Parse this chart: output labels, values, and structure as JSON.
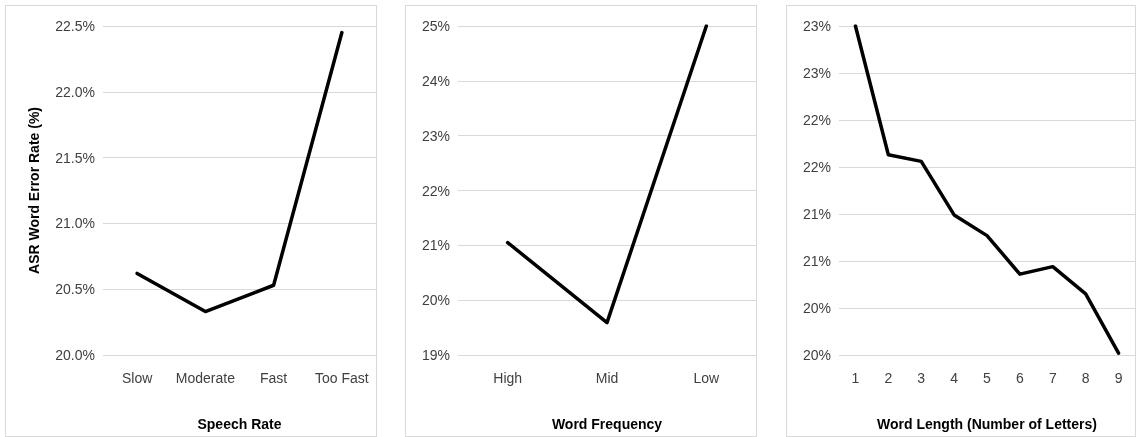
{
  "chart_data": [
    {
      "type": "line",
      "xlabel": "Speech Rate",
      "ylabel": "ASR Word Error Rate (%)",
      "categories": [
        "Slow",
        "Moderate",
        "Fast",
        "Too Fast"
      ],
      "series": [
        {
          "color": "#000000",
          "values": [
            20.62,
            20.33,
            20.53,
            22.45
          ]
        }
      ],
      "ylim": [
        20,
        22.5
      ],
      "yticks": [
        {
          "value": 20,
          "label": "20.0%"
        },
        {
          "value": 20.5,
          "label": "20.5%"
        },
        {
          "value": 21,
          "label": "21.0%"
        },
        {
          "value": 21.5,
          "label": "21.5%"
        },
        {
          "value": 22,
          "label": "22.0%"
        },
        {
          "value": 22.5,
          "label": "22.5%"
        }
      ],
      "grid": "y",
      "marker": "none",
      "line_style": "solid"
    },
    {
      "type": "line",
      "xlabel": "Word Frequency",
      "categories": [
        "High",
        "Mid",
        "Low"
      ],
      "series": [
        {
          "color": "#000000",
          "values": [
            21.05,
            19.59,
            25
          ]
        }
      ],
      "ylim": [
        19,
        25
      ],
      "yticks": [
        {
          "value": 19,
          "label": "19%"
        },
        {
          "value": 20,
          "label": "20%"
        },
        {
          "value": 21,
          "label": "21%"
        },
        {
          "value": 22,
          "label": "22%"
        },
        {
          "value": 23,
          "label": "23%"
        },
        {
          "value": 24,
          "label": "24%"
        },
        {
          "value": 25,
          "label": "25%"
        }
      ],
      "grid": "y",
      "marker": "none",
      "line_style": "solid"
    },
    {
      "type": "line",
      "xlabel": "Word Length (Number of Letters)",
      "categories": [
        "1",
        "2",
        "3",
        "4",
        "5",
        "6",
        "7",
        "8",
        "9"
      ],
      "series": [
        {
          "color": "#000000",
          "values": [
            23.5,
            22.13,
            22.06,
            21.49,
            21.27,
            20.86,
            20.94,
            20.65,
            20.02
          ]
        }
      ],
      "ylim": [
        20,
        23.5
      ],
      "yticks": [
        {
          "value": 20,
          "label": "20%"
        },
        {
          "value": 20.5,
          "label": "20%"
        },
        {
          "value": 21,
          "label": "21%"
        },
        {
          "value": 21.5,
          "label": "21%"
        },
        {
          "value": 22,
          "label": "22%"
        },
        {
          "value": 22.5,
          "label": "22%"
        },
        {
          "value": 23,
          "label": "23%"
        },
        {
          "value": 23.5,
          "label": "23%"
        }
      ],
      "grid": "y",
      "marker": "none",
      "line_style": "solid"
    }
  ]
}
